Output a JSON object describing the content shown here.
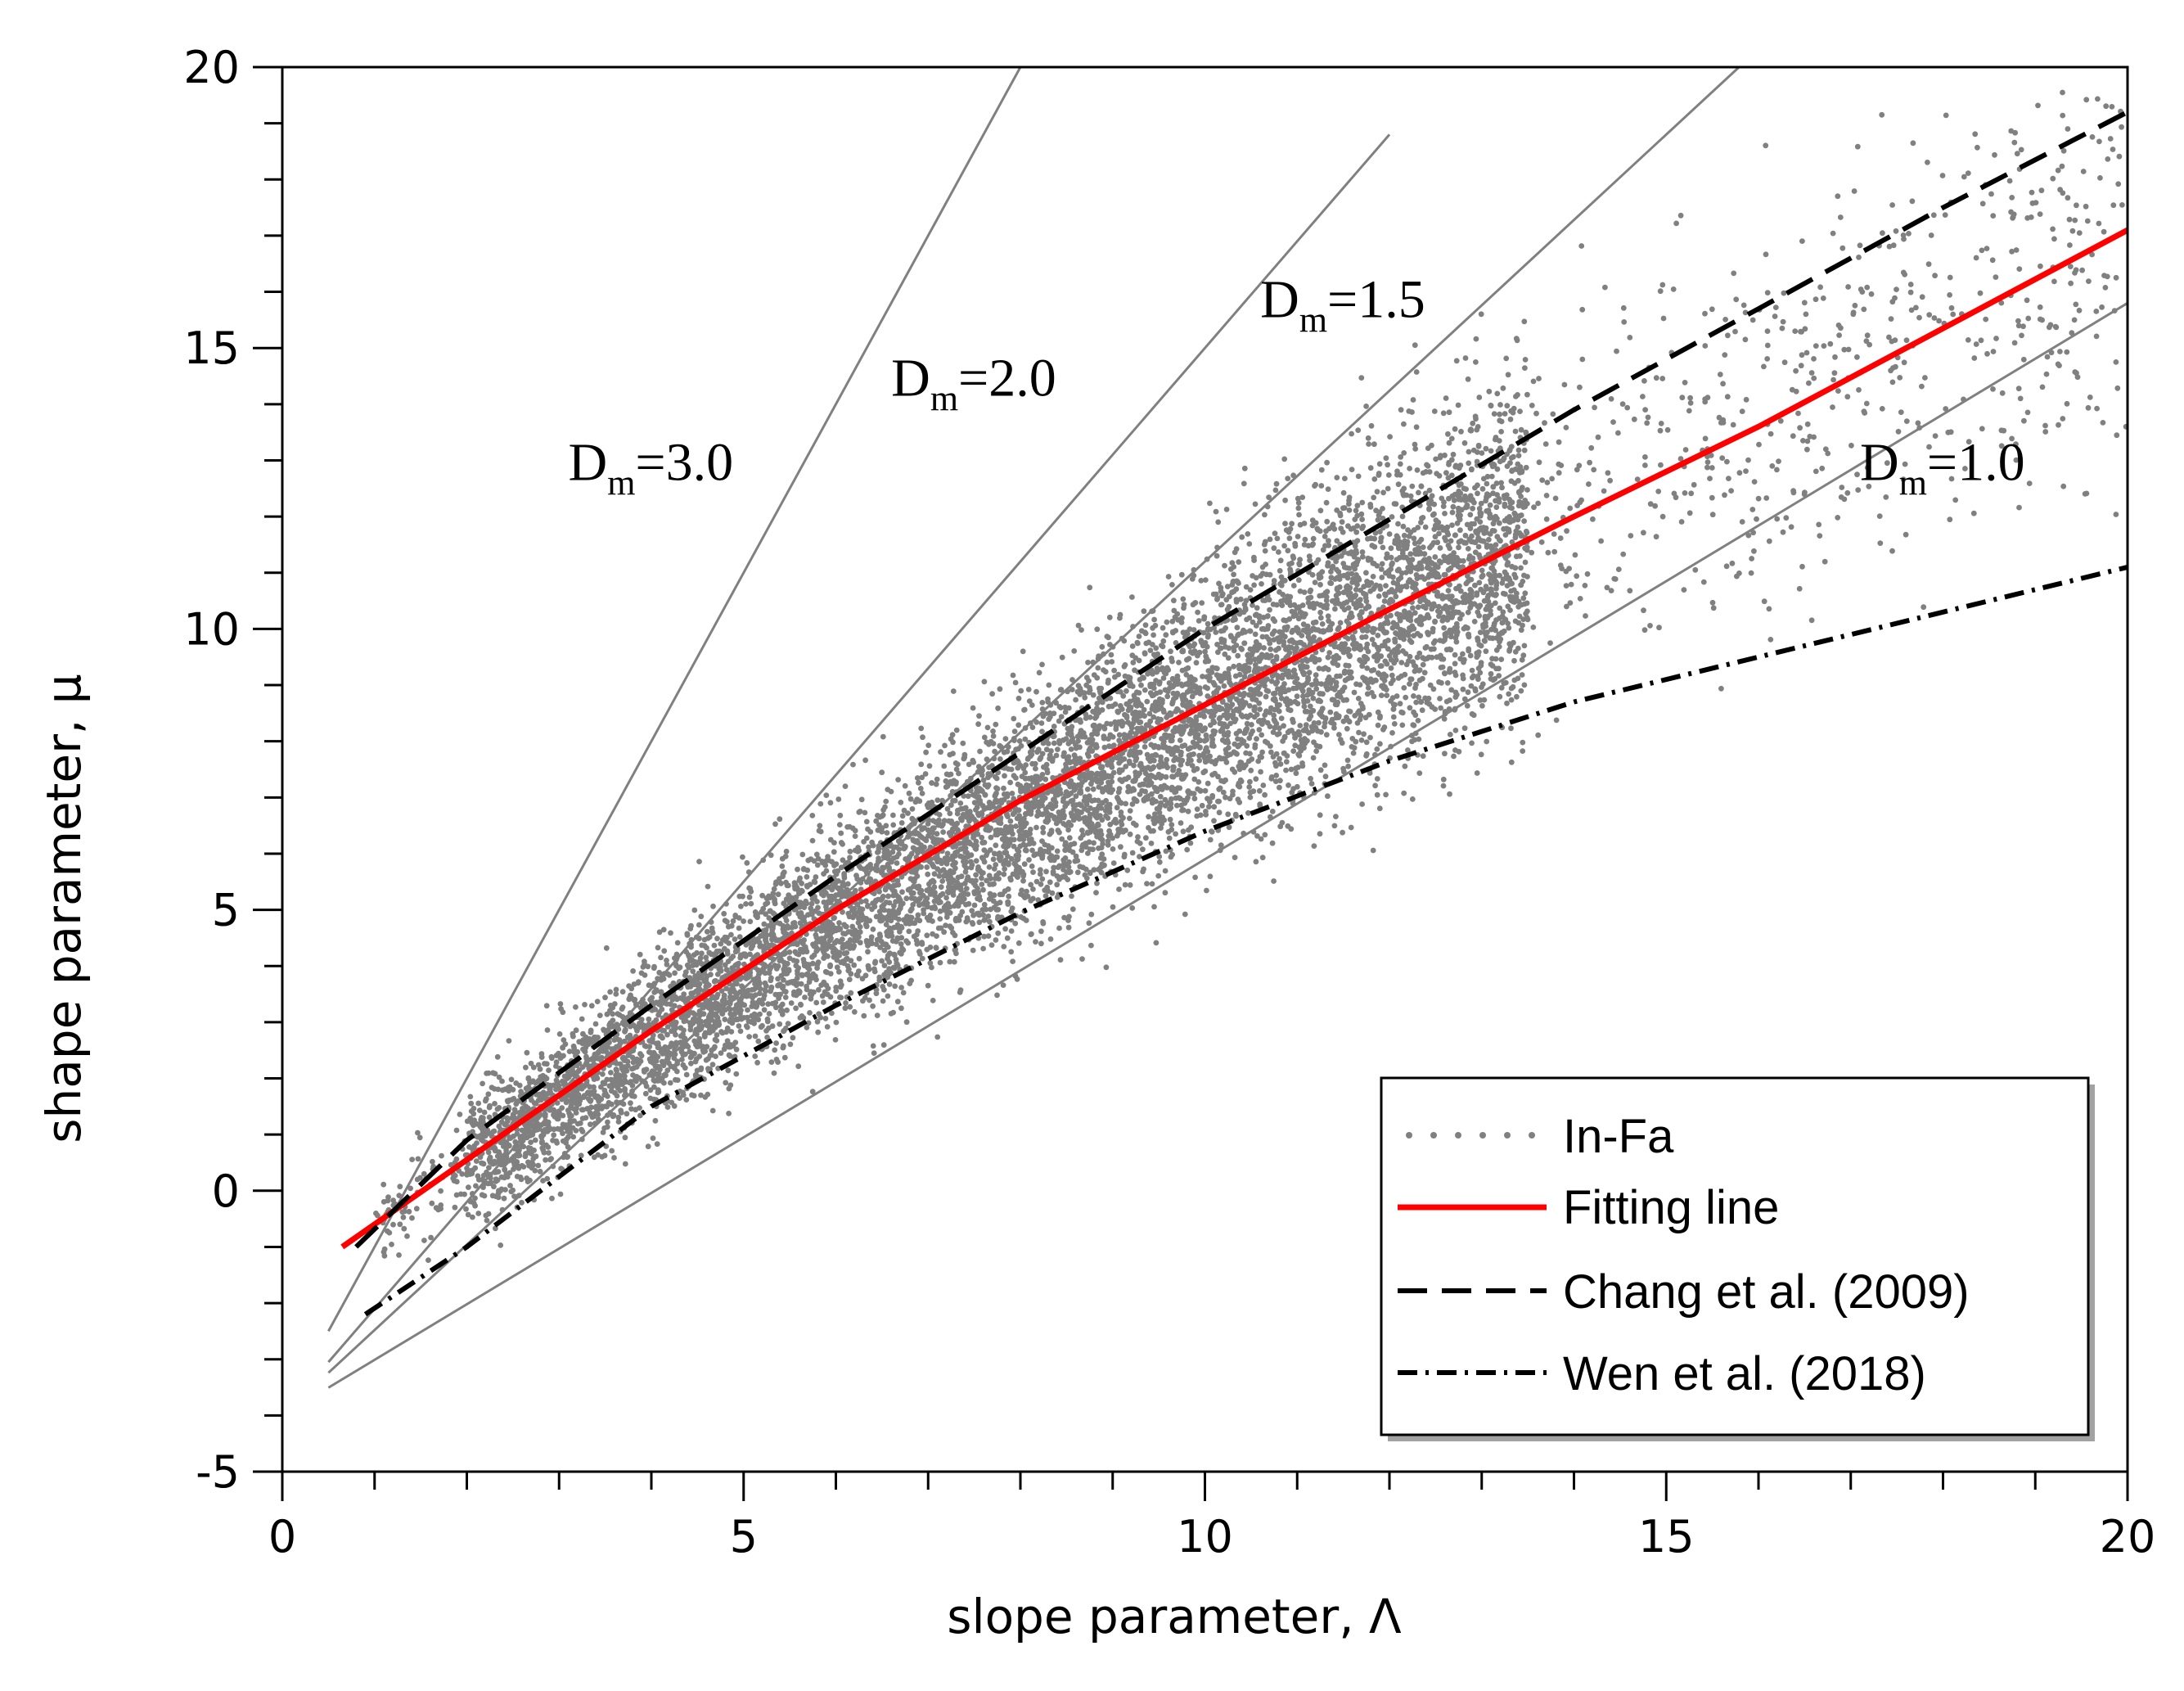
{
  "chart_data": {
    "type": "scatter",
    "xlabel": "slope parameter, Λ",
    "ylabel": "shape parameter, μ",
    "xlim": [
      0,
      20
    ],
    "ylim": [
      -5,
      20
    ],
    "x_ticks": [
      "0",
      "5",
      "10",
      "15",
      "20"
    ],
    "y_ticks": [
      "-5",
      "0",
      "5",
      "10",
      "15",
      "20"
    ],
    "x_minor_step": 1,
    "y_minor_step": 1,
    "point_color": "#808080",
    "series": [
      {
        "name": "In-Fa",
        "kind": "points",
        "color": "#808080",
        "x_range": [
          1,
          20
        ],
        "trend": [
          [
            1,
            -0.6
          ],
          [
            5,
            3.8
          ],
          [
            10,
            8.6
          ],
          [
            15,
            13
          ],
          [
            20,
            17.1
          ]
        ],
        "n_points": 9000
      },
      {
        "name": "Fitting line",
        "kind": "line",
        "color": "#ff0000",
        "dash": "solid",
        "points": [
          [
            0.65,
            -1.0
          ],
          [
            2,
            0.55
          ],
          [
            4,
            2.85
          ],
          [
            6,
            5.0
          ],
          [
            8,
            6.95
          ],
          [
            10,
            8.65
          ],
          [
            12,
            10.35
          ],
          [
            14,
            12.0
          ],
          [
            16,
            13.6
          ],
          [
            18,
            15.35
          ],
          [
            20,
            17.1
          ]
        ]
      },
      {
        "name": "Chang et al. (2009)",
        "kind": "line",
        "color": "#000000",
        "dash": "long-dash",
        "points": [
          [
            0.8,
            -1.0
          ],
          [
            2,
            0.9
          ],
          [
            4,
            3.3
          ],
          [
            6,
            5.6
          ],
          [
            8,
            7.8
          ],
          [
            10,
            10.0
          ],
          [
            12,
            11.95
          ],
          [
            14,
            13.9
          ],
          [
            16,
            15.7
          ],
          [
            18,
            17.5
          ],
          [
            20,
            19.2
          ]
        ]
      },
      {
        "name": "Wen et al. (2018)",
        "kind": "line",
        "color": "#000000",
        "dash": "dash-dot",
        "points": [
          [
            0.9,
            -2.2
          ],
          [
            2,
            -1.0
          ],
          [
            4,
            1.5
          ],
          [
            6,
            3.3
          ],
          [
            8,
            4.95
          ],
          [
            10,
            6.4
          ],
          [
            12,
            7.65
          ],
          [
            14,
            8.7
          ],
          [
            16,
            9.5
          ],
          [
            18,
            10.3
          ],
          [
            20,
            11.1
          ]
        ]
      }
    ],
    "reference_lines": [
      {
        "label_main": "D",
        "label_sub": "m",
        "label_rest": "=3.0",
        "color": "#808080",
        "slope": 3.0,
        "intercept": -4.0,
        "x_range": [
          0.5,
          8
        ]
      },
      {
        "label_main": "D",
        "label_sub": "m",
        "label_rest": "=2.0",
        "color": "#808080",
        "slope": 1.9,
        "intercept": -4.0,
        "x_range": [
          0.5,
          12
        ]
      },
      {
        "label_main": "D",
        "label_sub": "m",
        "label_rest": "=1.5",
        "color": "#808080",
        "slope": 1.52,
        "intercept": -4.0,
        "x_range": [
          0.5,
          16
        ]
      },
      {
        "label_main": "D",
        "label_sub": "m",
        "label_rest": "=1.0",
        "color": "#808080",
        "slope": 0.99,
        "intercept": -4.0,
        "x_range": [
          0.5,
          20
        ]
      }
    ],
    "annotations": [
      {
        "ref": 0,
        "x": 3.1,
        "y": 12.65
      },
      {
        "ref": 1,
        "x": 6.6,
        "y": 14.15
      },
      {
        "ref": 2,
        "x": 10.6,
        "y": 15.55
      },
      {
        "ref": 3,
        "x": 17.1,
        "y": 12.65
      }
    ],
    "legend": {
      "position": "bottom-right",
      "entries": [
        "In-Fa",
        "Fitting line",
        "Chang et al. (2009)",
        "Wen et al. (2018)"
      ]
    }
  }
}
